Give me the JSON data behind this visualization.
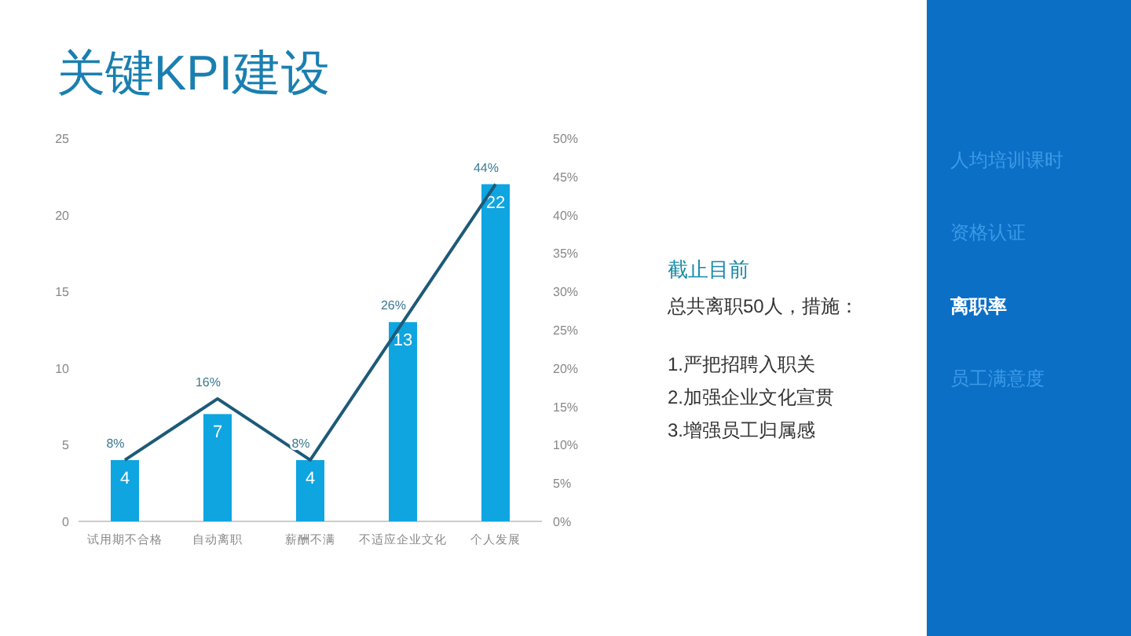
{
  "chart_data": {
    "type": "bar",
    "title": "关键KPI建设",
    "categories": [
      "试用期不合格",
      "自动离职",
      "薪酬不满",
      "不适应企业文化",
      "个人发展"
    ],
    "series": [
      {
        "color": "#0ea5e0",
        "values": [
          4,
          7,
          4,
          13,
          22
        ],
        "value_labels": [
          "4",
          "7",
          "4",
          "13",
          "22"
        ]
      },
      {
        "type": "line",
        "axis": "y2",
        "color": "#1d5a78",
        "values": [
          8,
          16,
          8,
          26,
          44
        ],
        "value_labels": [
          "8%",
          "16%",
          "8%",
          "26%",
          "44%"
        ]
      }
    ],
    "ylim": [
      0,
      25
    ],
    "yticks": [
      0,
      5,
      10,
      15,
      20,
      25
    ],
    "y2lim": [
      0,
      50
    ],
    "y2ticks": [
      {
        "value": 0,
        "label": "0%"
      },
      {
        "value": 5,
        "label": "5%"
      },
      {
        "value": 10,
        "label": "10%"
      },
      {
        "value": 15,
        "label": "15%"
      },
      {
        "value": 20,
        "label": "20%"
      },
      {
        "value": 25,
        "label": "25%"
      },
      {
        "value": 30,
        "label": "30%"
      },
      {
        "value": 35,
        "label": "35%"
      },
      {
        "value": 40,
        "label": "40%"
      },
      {
        "value": 45,
        "label": "45%"
      },
      {
        "value": 50,
        "label": "50%"
      }
    ],
    "annotations": [
      "截止目前",
      "总共离职50人，措施：",
      "1.严把招聘入职关",
      "2.加强企业文化宣贯",
      "3.增强员工归属感",
      "人均培训课时",
      "资格认证",
      "离职率",
      "员工满意度"
    ]
  }
}
